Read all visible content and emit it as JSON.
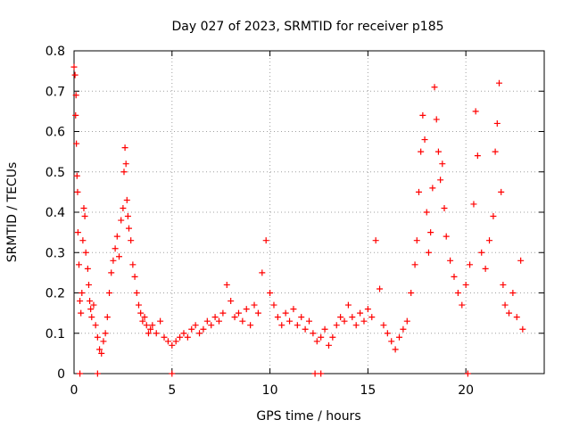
{
  "chart_data": {
    "type": "scatter",
    "title": "Day 027 of 2023, SRMTID for receiver p185",
    "xlabel": "GPS time / hours",
    "ylabel": "SRMTID / TECUs",
    "xlim": [
      0,
      24
    ],
    "ylim": [
      0,
      0.8
    ],
    "x_ticks": [
      0,
      5,
      10,
      15,
      20
    ],
    "x_tick_labels": [
      "0",
      "5",
      "10",
      "15",
      "20"
    ],
    "y_ticks": [
      0,
      0.1,
      0.2,
      0.3,
      0.4,
      0.5,
      0.6,
      0.7,
      0.8
    ],
    "y_tick_labels": [
      "0",
      "0.1",
      "0.2",
      "0.3",
      "0.4",
      "0.5",
      "0.6",
      "0.7",
      "0.8"
    ],
    "grid": true,
    "marker": "plus",
    "marker_color": "#ff0000",
    "series": [
      {
        "name": "SRMTID",
        "points": [
          [
            0.0,
            0.76
          ],
          [
            0.05,
            0.74
          ],
          [
            0.1,
            0.69
          ],
          [
            0.08,
            0.64
          ],
          [
            0.12,
            0.57
          ],
          [
            0.15,
            0.49
          ],
          [
            0.18,
            0.45
          ],
          [
            0.2,
            0.35
          ],
          [
            0.25,
            0.27
          ],
          [
            0.3,
            0.18
          ],
          [
            0.35,
            0.15
          ],
          [
            0.4,
            0.2
          ],
          [
            0.45,
            0.33
          ],
          [
            0.5,
            0.41
          ],
          [
            0.55,
            0.39
          ],
          [
            0.6,
            0.3
          ],
          [
            0.7,
            0.26
          ],
          [
            0.75,
            0.22
          ],
          [
            0.8,
            0.18
          ],
          [
            0.85,
            0.16
          ],
          [
            0.9,
            0.14
          ],
          [
            1.0,
            0.17
          ],
          [
            1.1,
            0.12
          ],
          [
            1.2,
            0.09
          ],
          [
            1.3,
            0.06
          ],
          [
            1.4,
            0.05
          ],
          [
            1.5,
            0.08
          ],
          [
            1.6,
            0.1
          ],
          [
            1.7,
            0.14
          ],
          [
            1.8,
            0.2
          ],
          [
            1.9,
            0.25
          ],
          [
            2.0,
            0.28
          ],
          [
            2.1,
            0.31
          ],
          [
            2.2,
            0.34
          ],
          [
            2.3,
            0.29
          ],
          [
            2.4,
            0.38
          ],
          [
            2.5,
            0.41
          ],
          [
            2.55,
            0.5
          ],
          [
            2.6,
            0.56
          ],
          [
            2.65,
            0.52
          ],
          [
            2.7,
            0.43
          ],
          [
            2.75,
            0.39
          ],
          [
            2.8,
            0.36
          ],
          [
            2.9,
            0.33
          ],
          [
            3.0,
            0.27
          ],
          [
            3.1,
            0.24
          ],
          [
            3.2,
            0.2
          ],
          [
            3.3,
            0.17
          ],
          [
            3.4,
            0.15
          ],
          [
            3.5,
            0.13
          ],
          [
            3.6,
            0.14
          ],
          [
            3.7,
            0.12
          ],
          [
            3.8,
            0.1
          ],
          [
            3.9,
            0.11
          ],
          [
            4.0,
            0.12
          ],
          [
            4.2,
            0.1
          ],
          [
            4.4,
            0.13
          ],
          [
            4.6,
            0.09
          ],
          [
            4.8,
            0.08
          ],
          [
            5.0,
            0.07
          ],
          [
            5.2,
            0.08
          ],
          [
            5.4,
            0.09
          ],
          [
            5.6,
            0.1
          ],
          [
            5.8,
            0.09
          ],
          [
            6.0,
            0.11
          ],
          [
            6.2,
            0.12
          ],
          [
            6.4,
            0.1
          ],
          [
            6.6,
            0.11
          ],
          [
            6.8,
            0.13
          ],
          [
            7.0,
            0.12
          ],
          [
            7.2,
            0.14
          ],
          [
            7.4,
            0.13
          ],
          [
            7.6,
            0.15
          ],
          [
            7.8,
            0.22
          ],
          [
            8.0,
            0.18
          ],
          [
            8.2,
            0.14
          ],
          [
            8.4,
            0.15
          ],
          [
            8.6,
            0.13
          ],
          [
            8.8,
            0.16
          ],
          [
            9.0,
            0.12
          ],
          [
            9.2,
            0.17
          ],
          [
            9.4,
            0.15
          ],
          [
            9.6,
            0.25
          ],
          [
            9.8,
            0.33
          ],
          [
            10.0,
            0.2
          ],
          [
            10.2,
            0.17
          ],
          [
            10.4,
            0.14
          ],
          [
            10.6,
            0.12
          ],
          [
            10.8,
            0.15
          ],
          [
            11.0,
            0.13
          ],
          [
            11.2,
            0.16
          ],
          [
            11.4,
            0.12
          ],
          [
            11.6,
            0.14
          ],
          [
            11.8,
            0.11
          ],
          [
            12.0,
            0.13
          ],
          [
            12.2,
            0.1
          ],
          [
            12.4,
            0.08
          ],
          [
            12.6,
            0.09
          ],
          [
            12.8,
            0.11
          ],
          [
            13.0,
            0.07
          ],
          [
            13.2,
            0.09
          ],
          [
            13.4,
            0.12
          ],
          [
            13.6,
            0.14
          ],
          [
            13.8,
            0.13
          ],
          [
            14.0,
            0.17
          ],
          [
            14.2,
            0.14
          ],
          [
            14.4,
            0.12
          ],
          [
            14.6,
            0.15
          ],
          [
            14.8,
            0.13
          ],
          [
            15.0,
            0.16
          ],
          [
            15.2,
            0.14
          ],
          [
            15.4,
            0.33
          ],
          [
            15.6,
            0.21
          ],
          [
            15.8,
            0.12
          ],
          [
            16.0,
            0.1
          ],
          [
            16.2,
            0.08
          ],
          [
            16.4,
            0.06
          ],
          [
            16.6,
            0.09
          ],
          [
            16.8,
            0.11
          ],
          [
            17.0,
            0.13
          ],
          [
            17.2,
            0.2
          ],
          [
            17.4,
            0.27
          ],
          [
            17.5,
            0.33
          ],
          [
            17.6,
            0.45
          ],
          [
            17.7,
            0.55
          ],
          [
            17.8,
            0.64
          ],
          [
            17.9,
            0.58
          ],
          [
            18.0,
            0.4
          ],
          [
            18.1,
            0.3
          ],
          [
            18.2,
            0.35
          ],
          [
            18.3,
            0.46
          ],
          [
            18.4,
            0.71
          ],
          [
            18.5,
            0.63
          ],
          [
            18.6,
            0.55
          ],
          [
            18.7,
            0.48
          ],
          [
            18.8,
            0.52
          ],
          [
            18.9,
            0.41
          ],
          [
            19.0,
            0.34
          ],
          [
            19.2,
            0.28
          ],
          [
            19.4,
            0.24
          ],
          [
            19.6,
            0.2
          ],
          [
            19.8,
            0.17
          ],
          [
            20.0,
            0.22
          ],
          [
            20.2,
            0.27
          ],
          [
            20.4,
            0.42
          ],
          [
            20.5,
            0.65
          ],
          [
            20.6,
            0.54
          ],
          [
            20.8,
            0.3
          ],
          [
            21.0,
            0.26
          ],
          [
            21.2,
            0.33
          ],
          [
            21.4,
            0.39
          ],
          [
            21.5,
            0.55
          ],
          [
            21.6,
            0.62
          ],
          [
            21.7,
            0.72
          ],
          [
            21.8,
            0.45
          ],
          [
            21.9,
            0.22
          ],
          [
            22.0,
            0.17
          ],
          [
            22.2,
            0.15
          ],
          [
            22.4,
            0.2
          ],
          [
            22.6,
            0.14
          ],
          [
            22.8,
            0.28
          ],
          [
            22.9,
            0.11
          ],
          [
            0.3,
            0.0
          ],
          [
            1.2,
            0.0
          ],
          [
            5.0,
            0.0
          ],
          [
            12.3,
            0.0
          ],
          [
            12.6,
            0.0
          ],
          [
            20.1,
            0.0
          ]
        ]
      }
    ]
  }
}
